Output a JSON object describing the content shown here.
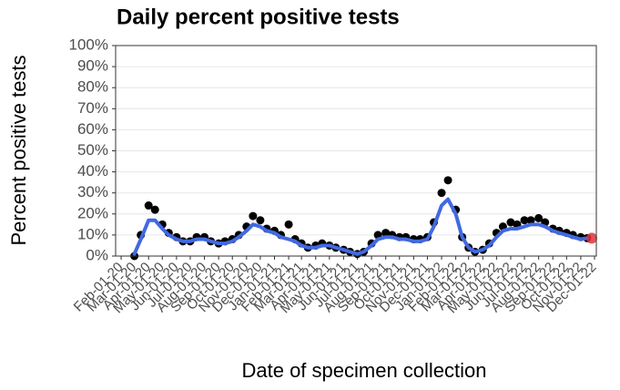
{
  "chart_data": {
    "type": "line",
    "title": "Daily percent positive tests",
    "xlabel": "Date of specimen collection",
    "ylabel": "Percent positive tests",
    "x": [
      "2020-03-01",
      "2020-03-15",
      "2020-04-01",
      "2020-04-15",
      "2020-05-01",
      "2020-05-15",
      "2020-06-01",
      "2020-06-15",
      "2020-07-01",
      "2020-07-15",
      "2020-08-01",
      "2020-08-15",
      "2020-09-01",
      "2020-09-15",
      "2020-10-01",
      "2020-10-15",
      "2020-11-01",
      "2020-11-15",
      "2020-12-01",
      "2020-12-15",
      "2021-01-01",
      "2021-01-15",
      "2021-02-01",
      "2021-02-15",
      "2021-03-01",
      "2021-03-15",
      "2021-04-01",
      "2021-04-15",
      "2021-05-01",
      "2021-05-15",
      "2021-06-01",
      "2021-06-15",
      "2021-07-01",
      "2021-07-15",
      "2021-08-01",
      "2021-08-15",
      "2021-09-01",
      "2021-09-15",
      "2021-10-01",
      "2021-10-15",
      "2021-11-01",
      "2021-11-15",
      "2021-12-01",
      "2021-12-15",
      "2022-01-01",
      "2022-01-15",
      "2022-02-01",
      "2022-02-15",
      "2022-03-01",
      "2022-03-15",
      "2022-04-01",
      "2022-04-15",
      "2022-05-01",
      "2022-05-15",
      "2022-06-01",
      "2022-06-15",
      "2022-07-01",
      "2022-07-15",
      "2022-08-01",
      "2022-08-15",
      "2022-09-01",
      "2022-09-15",
      "2022-10-01",
      "2022-10-15",
      "2022-11-01",
      "2022-11-15"
    ],
    "series": [
      {
        "color": "#000000",
        "style": "points",
        "values": [
          0,
          10,
          24,
          22,
          15,
          11,
          9,
          7,
          7,
          9,
          9,
          7,
          6,
          7,
          8,
          10,
          14,
          19,
          17,
          13,
          12,
          10,
          15,
          8,
          6,
          4,
          5,
          6,
          5,
          4,
          3,
          2,
          1,
          2,
          6,
          10,
          11,
          10,
          9,
          9,
          8,
          8,
          9,
          16,
          30,
          36,
          22,
          9,
          4,
          2,
          3,
          6,
          11,
          14,
          16,
          15,
          17,
          17,
          18,
          16,
          13,
          12,
          11,
          10,
          9,
          8.5
        ]
      },
      {
        "color": "#4169e1",
        "style": "line",
        "values": [
          1,
          8,
          17,
          17,
          13,
          10,
          8,
          7,
          7,
          8,
          8,
          7,
          6,
          6,
          7,
          9,
          12,
          15,
          14,
          12,
          11,
          9,
          8,
          7,
          5,
          4,
          4,
          5,
          5,
          4,
          3,
          2,
          1,
          2,
          5,
          8,
          9,
          9,
          8,
          8,
          7,
          7,
          8,
          14,
          24,
          27,
          20,
          9,
          4,
          2,
          3,
          5,
          9,
          12,
          13,
          13,
          14,
          15,
          15,
          14,
          12,
          11,
          10,
          9,
          8,
          8.5
        ]
      }
    ],
    "latest": {
      "x": "2022-11-25",
      "value": 8.5,
      "color": "#d9363e"
    },
    "xlim": [
      "2020-01-20",
      "2022-12-05"
    ],
    "xticks": [
      {
        "value": "2020-02-01",
        "label": "Feb-01-20"
      },
      {
        "value": "2020-03-01",
        "label": "Mar-01-20"
      },
      {
        "value": "2020-04-01",
        "label": "Apr-01-20"
      },
      {
        "value": "2020-05-01",
        "label": "May-01-20"
      },
      {
        "value": "2020-06-01",
        "label": "Jun-01-20"
      },
      {
        "value": "2020-07-01",
        "label": "Jul-01-20"
      },
      {
        "value": "2020-08-01",
        "label": "Aug-01-20"
      },
      {
        "value": "2020-09-01",
        "label": "Sep-01-20"
      },
      {
        "value": "2020-10-01",
        "label": "Oct-01-20"
      },
      {
        "value": "2020-11-01",
        "label": "Nov-01-20"
      },
      {
        "value": "2020-12-01",
        "label": "Dec-01-20"
      },
      {
        "value": "2021-01-01",
        "label": "Jan-01-21"
      },
      {
        "value": "2021-02-01",
        "label": "Feb-01-21"
      },
      {
        "value": "2021-03-01",
        "label": "Mar-01-21"
      },
      {
        "value": "2021-04-01",
        "label": "Apr-01-21"
      },
      {
        "value": "2021-05-01",
        "label": "May-01-21"
      },
      {
        "value": "2021-06-01",
        "label": "Jun-01-21"
      },
      {
        "value": "2021-07-01",
        "label": "Jul-01-21"
      },
      {
        "value": "2021-08-01",
        "label": "Aug-01-21"
      },
      {
        "value": "2021-09-01",
        "label": "Sep-01-21"
      },
      {
        "value": "2021-10-01",
        "label": "Oct-01-21"
      },
      {
        "value": "2021-11-01",
        "label": "Nov-01-21"
      },
      {
        "value": "2021-12-01",
        "label": "Dec-01-21"
      },
      {
        "value": "2022-01-01",
        "label": "Jan-01-22"
      },
      {
        "value": "2022-02-01",
        "label": "Feb-01-22"
      },
      {
        "value": "2022-03-01",
        "label": "Mar-01-22"
      },
      {
        "value": "2022-04-01",
        "label": "Apr-01-22"
      },
      {
        "value": "2022-05-01",
        "label": "May-01-22"
      },
      {
        "value": "2022-06-01",
        "label": "Jun-01-22"
      },
      {
        "value": "2022-07-01",
        "label": "Jul-01-22"
      },
      {
        "value": "2022-08-01",
        "label": "Aug-01-22"
      },
      {
        "value": "2022-09-01",
        "label": "Sep-01-22"
      },
      {
        "value": "2022-10-01",
        "label": "Oct-01-22"
      },
      {
        "value": "2022-11-01",
        "label": "Nov-01-22"
      },
      {
        "value": "2022-12-01",
        "label": "Dec-01-22"
      }
    ],
    "ylim": [
      0,
      100
    ],
    "yticks": [
      {
        "value": 0,
        "label": "0%"
      },
      {
        "value": 10,
        "label": "10%"
      },
      {
        "value": 20,
        "label": "20%"
      },
      {
        "value": 30,
        "label": "30%"
      },
      {
        "value": 40,
        "label": "40%"
      },
      {
        "value": 50,
        "label": "50%"
      },
      {
        "value": 60,
        "label": "60%"
      },
      {
        "value": 70,
        "label": "70%"
      },
      {
        "value": 80,
        "label": "80%"
      },
      {
        "value": 90,
        "label": "90%"
      },
      {
        "value": 100,
        "label": "100%"
      }
    ],
    "grid": true
  }
}
